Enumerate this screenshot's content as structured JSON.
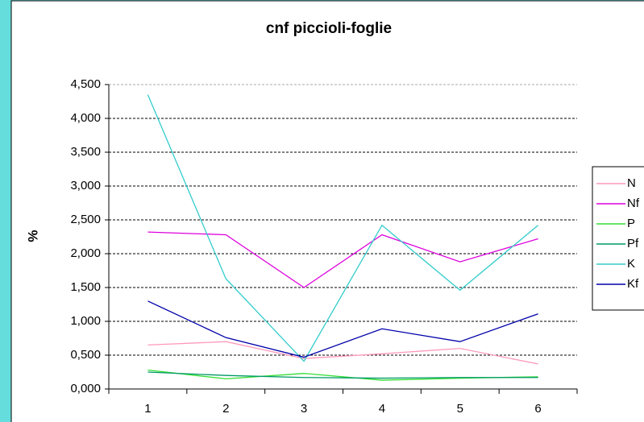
{
  "chart_data": {
    "type": "line",
    "title": "cnf piccioli-foglie",
    "y_label": "%",
    "categories": [
      "1",
      "2",
      "3",
      "4",
      "5",
      "6"
    ],
    "series": [
      {
        "name": "N",
        "color": "#ff99bb",
        "values": [
          0.65,
          0.7,
          0.45,
          0.52,
          0.6,
          0.37
        ]
      },
      {
        "name": "Nf",
        "color": "#dd00dd",
        "values": [
          2.32,
          2.28,
          1.5,
          2.28,
          1.88,
          2.22
        ]
      },
      {
        "name": "P",
        "color": "#33dd33",
        "values": [
          0.28,
          0.15,
          0.23,
          0.13,
          0.16,
          0.18
        ]
      },
      {
        "name": "Pf",
        "color": "#009966",
        "values": [
          0.25,
          0.2,
          0.17,
          0.16,
          0.17,
          0.17
        ]
      },
      {
        "name": "K",
        "color": "#33cccc",
        "values": [
          4.35,
          1.63,
          0.41,
          2.42,
          1.46,
          2.42
        ]
      },
      {
        "name": "Kf",
        "color": "#0000aa",
        "values": [
          1.3,
          0.76,
          0.47,
          0.89,
          0.7,
          1.11
        ]
      }
    ],
    "ylim": [
      0,
      4.5
    ],
    "yticks": [
      {
        "value": 0,
        "label": "0,000"
      },
      {
        "value": 0.5,
        "label": "0,500"
      },
      {
        "value": 1,
        "label": "1,000"
      },
      {
        "value": 1.5,
        "label": "1,500"
      },
      {
        "value": 2,
        "label": "2,000"
      },
      {
        "value": 2.5,
        "label": "2,500"
      },
      {
        "value": 3,
        "label": "3,000"
      },
      {
        "value": 3.5,
        "label": "3,500"
      },
      {
        "value": 4,
        "label": "4,000"
      },
      {
        "value": 4.5,
        "label": "4,500"
      }
    ],
    "grid": true,
    "legend": "right"
  }
}
